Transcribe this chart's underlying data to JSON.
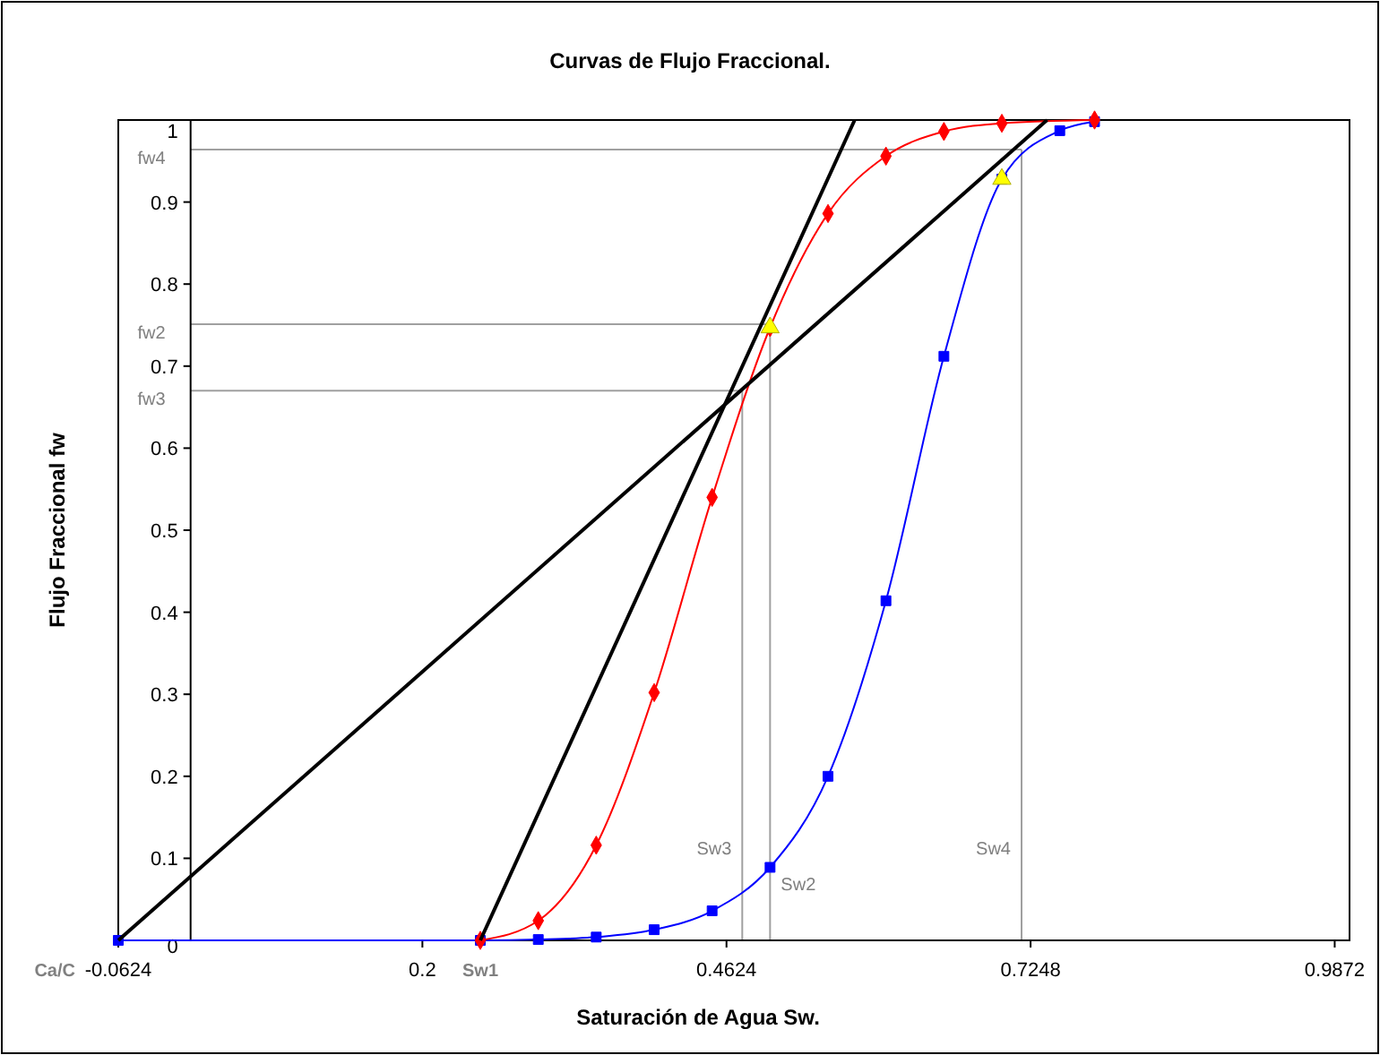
{
  "chart_data": {
    "type": "line",
    "title": "Curvas de Flujo Fraccional.",
    "xlabel": "Saturación de Agua Sw.",
    "ylabel": "Flujo Fraccional fw",
    "xlim": [
      -0.0624,
      1.0
    ],
    "xticks": [
      -0.0624,
      0.2,
      0.4624,
      0.7248,
      0.9872
    ],
    "ylim": [
      0,
      1
    ],
    "yticks": [
      0,
      0.1,
      0.2,
      0.3,
      0.4,
      0.5,
      0.6,
      0.7,
      0.8,
      0.9,
      1
    ],
    "grid": false,
    "series": [
      {
        "color": "#0000ff",
        "marker": "square",
        "x": [
          -0.0624,
          0.25,
          0.3,
          0.35,
          0.4,
          0.45,
          0.5,
          0.55,
          0.6,
          0.65,
          0.7,
          0.75,
          0.78
        ],
        "values": [
          0,
          0,
          0.001,
          0.004,
          0.013,
          0.036,
          0.089,
          0.2,
          0.414,
          0.712,
          0.928,
          0.987,
          0.998
        ]
      },
      {
        "color": "#ff0000",
        "marker": "diamond",
        "x": [
          0.25,
          0.3,
          0.35,
          0.4,
          0.45,
          0.5,
          0.55,
          0.6,
          0.65,
          0.7,
          0.78
        ],
        "values": [
          0,
          0.024,
          0.116,
          0.302,
          0.54,
          0.747,
          0.886,
          0.956,
          0.986,
          0.996,
          1
        ]
      },
      {
        "color": "#000000",
        "marker": "none",
        "x": [
          -0.0624,
          0.739
        ],
        "values": [
          0,
          1
        ]
      },
      {
        "color": "#000000",
        "marker": "none",
        "x": [
          0.25,
          0.573
        ],
        "values": [
          0,
          1
        ]
      },
      {
        "type": "scatter",
        "color": "#ffff00",
        "marker": "triangle",
        "x": [
          0.5,
          0.7
        ],
        "values": [
          0.747,
          0.928
        ]
      }
    ],
    "ref_lines": [
      {
        "axis": "y",
        "value": 0.964,
        "label": "fw4",
        "color": "#a0a0a0"
      },
      {
        "axis": "x",
        "value": 0.717,
        "label": "Sw4",
        "color": "#a0a0a0"
      },
      {
        "axis": "y",
        "value": 0.751,
        "label": "fw2",
        "color": "#a0a0a0"
      },
      {
        "axis": "x",
        "value": 0.5,
        "label": "Sw2",
        "color": "#a0a0a0"
      },
      {
        "axis": "y",
        "value": 0.67,
        "label": "fw3",
        "color": "#a0a0a0"
      },
      {
        "axis": "x",
        "value": 0.476,
        "label": "Sw3",
        "color": "#a0a0a0"
      }
    ],
    "annotations": [
      {
        "text": "Ca/C",
        "x": -0.0624,
        "y": 0
      },
      {
        "text": "Sw1",
        "x": 0.25,
        "y": 0
      }
    ]
  }
}
